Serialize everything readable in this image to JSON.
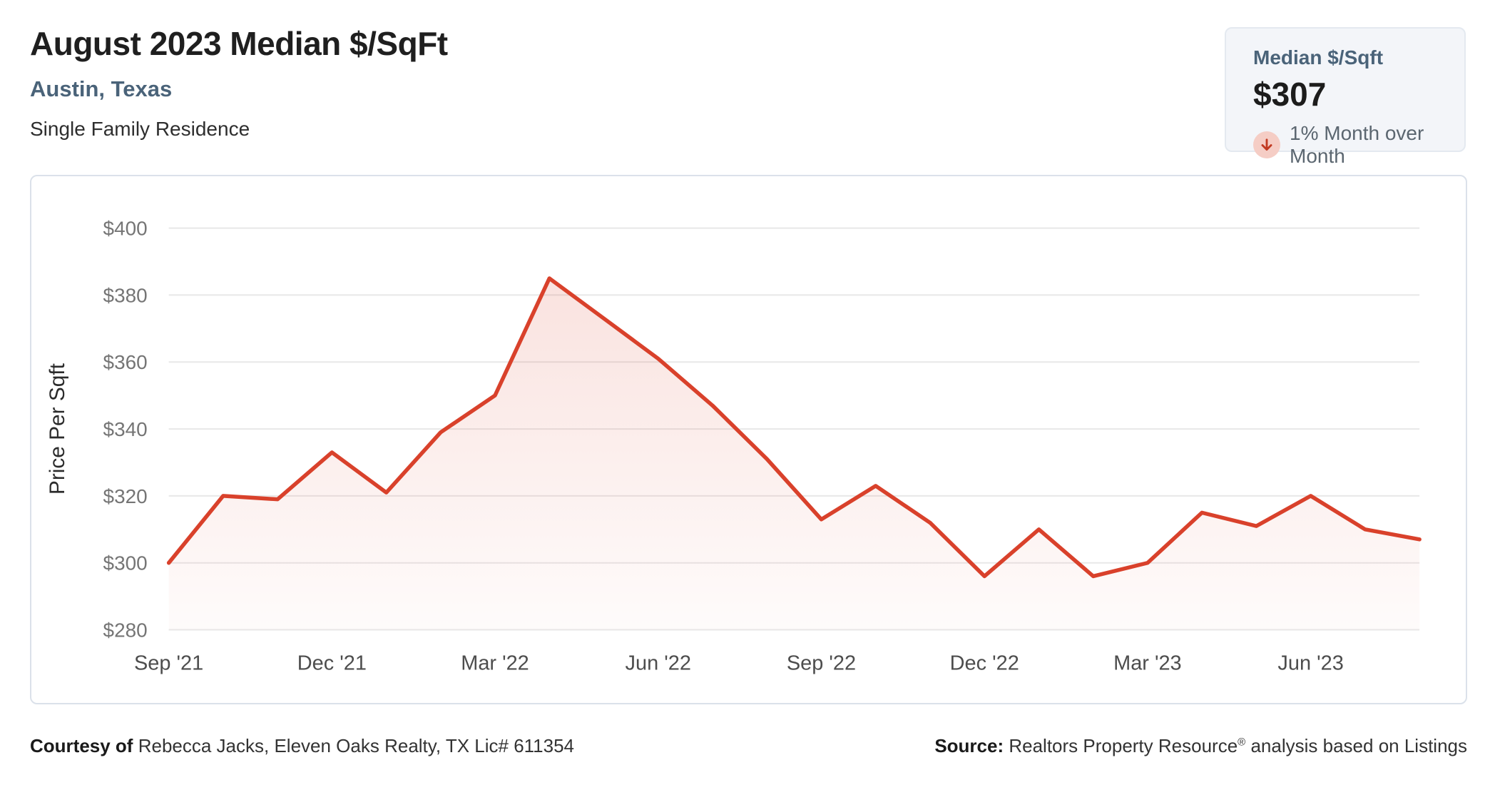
{
  "header": {
    "title": "August 2023 Median $/SqFt",
    "location": "Austin, Texas",
    "property_type": "Single Family Residence"
  },
  "summary_card": {
    "label": "Median $/Sqft",
    "value": "$307",
    "trend_direction": "down",
    "trend_icon": "down-arrow",
    "trend_text": "1% Month over Month"
  },
  "colors": {
    "line": "#d9412b",
    "area_fill_top_opacity": 0.17,
    "area_fill_bottom_opacity": 0.02,
    "grid": "#e8e8e8",
    "y_tick_label": "#757575",
    "x_tick_label": "#4d4d4d",
    "axis_title": "#2b2b2b",
    "accent_slate": "#4a6379",
    "trend_circle_bg": "#f5cdc5",
    "trend_arrow": "#c23a22",
    "card_border": "#dbe1ea",
    "badge_bg": "#f3f5f9"
  },
  "chart_data": {
    "type": "area",
    "title": "",
    "xlabel": "",
    "ylabel": "Price Per Sqft",
    "ylim": [
      280,
      400
    ],
    "y_ticks": [
      280,
      300,
      320,
      340,
      360,
      380,
      400
    ],
    "y_tick_prefix": "$",
    "grid": true,
    "legend": false,
    "x": [
      "Sep '21",
      "Oct '21",
      "Nov '21",
      "Dec '21",
      "Jan '22",
      "Feb '22",
      "Mar '22",
      "Apr '22",
      "May '22",
      "Jun '22",
      "Jul '22",
      "Aug '22",
      "Sep '22",
      "Oct '22",
      "Nov '22",
      "Dec '22",
      "Jan '23",
      "Feb '23",
      "Mar '23",
      "Apr '23",
      "May '23",
      "Jun '23",
      "Jul '23",
      "Aug '23"
    ],
    "values": [
      300,
      320,
      319,
      333,
      321,
      339,
      350,
      385,
      373,
      361,
      347,
      331,
      313,
      323,
      312,
      296,
      310,
      296,
      300,
      315,
      311,
      320,
      310,
      307
    ],
    "x_tick_indices": [
      0,
      3,
      6,
      9,
      12,
      15,
      18,
      21
    ],
    "x_tick_labels": [
      "Sep '21",
      "Dec '21",
      "Mar '22",
      "Jun '22",
      "Sep '22",
      "Dec '22",
      "Mar '23",
      "Jun '23"
    ]
  },
  "footer": {
    "courtesy_label": "Courtesy of",
    "courtesy_value": "Rebecca Jacks, Eleven Oaks Realty, TX Lic# 611354",
    "source_label": "Source:",
    "source_value_main": "Realtors Property Resource",
    "source_value_mark": "®",
    "source_value_rest": "analysis based on Listings"
  }
}
